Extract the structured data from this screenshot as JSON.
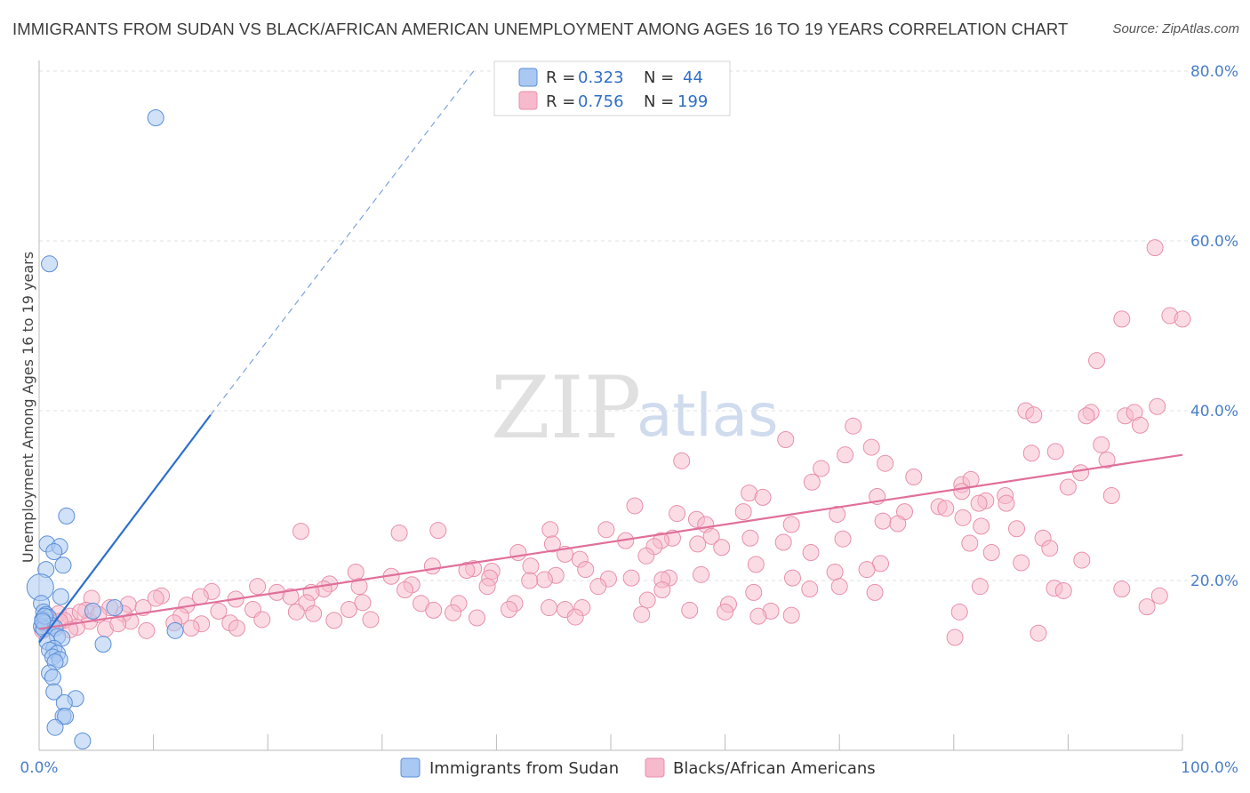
{
  "title": "IMMIGRANTS FROM SUDAN VS BLACK/AFRICAN AMERICAN UNEMPLOYMENT AMONG AGES 16 TO 19 YEARS CORRELATION CHART",
  "source": "Source: ZipAtlas.com",
  "watermark": {
    "zip": "ZIP",
    "atlas": "atlas"
  },
  "legend": {
    "series": [
      {
        "r_label": "R =",
        "r_value": "0.323",
        "n_label": "N =",
        "n_value": "44"
      },
      {
        "r_label": "R =",
        "r_value": "0.756",
        "n_label": "N =",
        "n_value": "199"
      }
    ]
  },
  "bottom_legend": [
    "Immigrants from Sudan",
    "Blacks/African Americans"
  ],
  "colors": {
    "sudan_fill": "#a9c8f2",
    "sudan_stroke": "#5b8fd6",
    "sudan_line": "#2e6fcc",
    "black_fill": "#f7b9cc",
    "black_stroke": "#e890aa",
    "black_line": "#e0709a",
    "tick_text": "#4a7fc8",
    "grid": "#e2e2e2"
  },
  "chart_data": {
    "type": "scatter",
    "xlabel": "",
    "ylabel": "Unemployment Among Ages 16 to 19 years",
    "xlim": [
      0,
      100
    ],
    "ylim": [
      0,
      80
    ],
    "x_tick_labels": [
      "0.0%",
      "100.0%"
    ],
    "y_ticks": [
      20,
      40,
      60,
      80
    ],
    "y_tick_labels": [
      "20.0%",
      "40.0%",
      "60.0%",
      "80.0%"
    ],
    "grid": true,
    "legend_position": "top-center",
    "series": [
      {
        "name": "Immigrants from Sudan",
        "r": 0.323,
        "n": 44,
        "trend": {
          "x0": 0,
          "y0": 12.7,
          "x1": 15,
          "y1": 39.5,
          "dashed_to": [
            38,
            80
          ]
        },
        "points": [
          [
            10.2,
            74.5
          ],
          [
            0.9,
            57.3
          ],
          [
            2.4,
            27.6
          ],
          [
            0.7,
            24.3
          ],
          [
            1.8,
            24.0
          ],
          [
            1.3,
            23.4
          ],
          [
            2.1,
            21.8
          ],
          [
            0.6,
            21.3
          ],
          [
            0.1,
            19.2
          ],
          [
            1.9,
            18.1
          ],
          [
            0.2,
            17.3
          ],
          [
            0.4,
            16.3
          ],
          [
            0.6,
            16.0
          ],
          [
            0.8,
            15.7
          ],
          [
            0.3,
            15.4
          ],
          [
            0.5,
            15.0
          ],
          [
            1.1,
            14.7
          ],
          [
            0.2,
            14.6
          ],
          [
            0.4,
            14.3
          ],
          [
            1.4,
            14.4
          ],
          [
            11.9,
            14.1
          ],
          [
            1.6,
            13.4
          ],
          [
            2.0,
            13.2
          ],
          [
            0.7,
            12.8
          ],
          [
            5.6,
            12.5
          ],
          [
            1.3,
            12.0
          ],
          [
            0.9,
            11.8
          ],
          [
            1.6,
            11.4
          ],
          [
            1.2,
            11.0
          ],
          [
            1.8,
            10.7
          ],
          [
            1.4,
            10.4
          ],
          [
            0.9,
            9.1
          ],
          [
            1.2,
            8.6
          ],
          [
            1.3,
            6.9
          ],
          [
            3.2,
            6.1
          ],
          [
            2.2,
            5.6
          ],
          [
            2.1,
            4.0
          ],
          [
            2.3,
            4.0
          ],
          [
            1.4,
            2.7
          ],
          [
            3.8,
            1.1
          ],
          [
            6.6,
            16.8
          ],
          [
            4.7,
            16.4
          ],
          [
            0.5,
            15.8
          ],
          [
            0.3,
            15.2
          ]
        ]
      },
      {
        "name": "Blacks/African Americans",
        "r": 0.756,
        "n": 199,
        "trend": {
          "x0": 0,
          "y0": 14.3,
          "x1": 100,
          "y1": 34.8
        },
        "points": [
          [
            97.6,
            59.2
          ],
          [
            94.7,
            50.8
          ],
          [
            98.9,
            51.2
          ],
          [
            100,
            50.8
          ],
          [
            92.5,
            45.9
          ],
          [
            97.8,
            40.5
          ],
          [
            95.0,
            39.4
          ],
          [
            95.8,
            39.8
          ],
          [
            86.3,
            40.0
          ],
          [
            87.0,
            39.5
          ],
          [
            92.0,
            39.8
          ],
          [
            91.6,
            39.4
          ],
          [
            96.3,
            38.3
          ],
          [
            71.2,
            38.2
          ],
          [
            65.3,
            36.6
          ],
          [
            92.9,
            36.0
          ],
          [
            72.8,
            35.7
          ],
          [
            86.8,
            35.0
          ],
          [
            88.9,
            35.2
          ],
          [
            93.4,
            34.2
          ],
          [
            70.5,
            34.8
          ],
          [
            56.2,
            34.1
          ],
          [
            74.0,
            33.8
          ],
          [
            68.4,
            33.2
          ],
          [
            91.1,
            32.7
          ],
          [
            76.5,
            32.2
          ],
          [
            80.7,
            31.3
          ],
          [
            81.5,
            31.9
          ],
          [
            67.6,
            31.6
          ],
          [
            90.0,
            31.0
          ],
          [
            62.1,
            30.3
          ],
          [
            80.7,
            30.5
          ],
          [
            84.5,
            30.0
          ],
          [
            73.3,
            29.9
          ],
          [
            93.8,
            30.0
          ],
          [
            63.3,
            29.8
          ],
          [
            82.8,
            29.4
          ],
          [
            84.6,
            29.1
          ],
          [
            82.2,
            29.1
          ],
          [
            52.1,
            28.8
          ],
          [
            78.7,
            28.7
          ],
          [
            79.3,
            28.5
          ],
          [
            61.6,
            28.1
          ],
          [
            75.7,
            28.1
          ],
          [
            55.8,
            27.9
          ],
          [
            69.8,
            27.8
          ],
          [
            80.8,
            27.4
          ],
          [
            57.5,
            27.2
          ],
          [
            73.8,
            27.0
          ],
          [
            58.3,
            26.6
          ],
          [
            75.1,
            26.7
          ],
          [
            82.4,
            26.4
          ],
          [
            65.8,
            26.6
          ],
          [
            85.5,
            26.1
          ],
          [
            49.6,
            26.0
          ],
          [
            22.9,
            25.8
          ],
          [
            31.5,
            25.6
          ],
          [
            34.9,
            25.9
          ],
          [
            44.7,
            26.0
          ],
          [
            58.8,
            25.2
          ],
          [
            62.2,
            25.0
          ],
          [
            51.3,
            24.7
          ],
          [
            55.4,
            25.0
          ],
          [
            87.8,
            25.0
          ],
          [
            70.3,
            24.9
          ],
          [
            81.4,
            24.4
          ],
          [
            65.1,
            24.5
          ],
          [
            57.6,
            24.3
          ],
          [
            44.9,
            24.3
          ],
          [
            54.4,
            24.7
          ],
          [
            53.8,
            24.0
          ],
          [
            59.7,
            23.9
          ],
          [
            88.4,
            23.8
          ],
          [
            83.3,
            23.3
          ],
          [
            67.5,
            23.3
          ],
          [
            41.9,
            23.3
          ],
          [
            46.0,
            23.1
          ],
          [
            53.1,
            22.9
          ],
          [
            47.3,
            22.5
          ],
          [
            91.2,
            22.4
          ],
          [
            73.6,
            22.0
          ],
          [
            85.9,
            22.1
          ],
          [
            62.7,
            21.9
          ],
          [
            43.0,
            21.7
          ],
          [
            72.4,
            21.3
          ],
          [
            69.6,
            21.0
          ],
          [
            57.9,
            20.7
          ],
          [
            38.0,
            21.4
          ],
          [
            34.4,
            21.7
          ],
          [
            37.4,
            21.2
          ],
          [
            47.8,
            21.3
          ],
          [
            39.6,
            21.1
          ],
          [
            27.7,
            21.0
          ],
          [
            30.8,
            20.5
          ],
          [
            45.2,
            20.6
          ],
          [
            55.1,
            20.3
          ],
          [
            51.8,
            20.3
          ],
          [
            65.9,
            20.3
          ],
          [
            54.5,
            20.1
          ],
          [
            39.4,
            20.3
          ],
          [
            49.8,
            20.2
          ],
          [
            44.2,
            20.1
          ],
          [
            42.9,
            20.0
          ],
          [
            25.4,
            19.6
          ],
          [
            32.6,
            19.5
          ],
          [
            28.0,
            19.3
          ],
          [
            39.2,
            19.3
          ],
          [
            48.9,
            19.3
          ],
          [
            54.5,
            18.9
          ],
          [
            32.0,
            18.9
          ],
          [
            19.1,
            19.3
          ],
          [
            24.9,
            19.0
          ],
          [
            20.8,
            18.6
          ],
          [
            23.8,
            18.6
          ],
          [
            22.0,
            18.1
          ],
          [
            88.8,
            19.1
          ],
          [
            67.4,
            19.0
          ],
          [
            70.0,
            19.3
          ],
          [
            82.3,
            19.3
          ],
          [
            94.7,
            19.0
          ],
          [
            62.5,
            18.6
          ],
          [
            73.1,
            18.6
          ],
          [
            89.6,
            18.8
          ],
          [
            98.0,
            18.2
          ],
          [
            15.1,
            18.7
          ],
          [
            10.7,
            18.2
          ],
          [
            4.6,
            17.9
          ],
          [
            14.1,
            18.1
          ],
          [
            10.2,
            17.9
          ],
          [
            17.2,
            17.8
          ],
          [
            23.4,
            17.4
          ],
          [
            28.3,
            17.4
          ],
          [
            33.4,
            17.3
          ],
          [
            36.7,
            17.3
          ],
          [
            41.6,
            17.3
          ],
          [
            44.6,
            16.8
          ],
          [
            47.5,
            16.8
          ],
          [
            34.5,
            16.5
          ],
          [
            27.1,
            16.6
          ],
          [
            7.8,
            17.2
          ],
          [
            12.9,
            17.1
          ],
          [
            9.1,
            16.8
          ],
          [
            18.7,
            16.6
          ],
          [
            15.7,
            16.4
          ],
          [
            6.2,
            16.8
          ],
          [
            4.1,
            16.5
          ],
          [
            22.5,
            16.3
          ],
          [
            24.0,
            16.1
          ],
          [
            12.4,
            15.8
          ],
          [
            7.4,
            16.1
          ],
          [
            1.7,
            16.1
          ],
          [
            2.7,
            15.8
          ],
          [
            19.5,
            15.4
          ],
          [
            25.8,
            15.3
          ],
          [
            36.2,
            16.2
          ],
          [
            41.1,
            16.6
          ],
          [
            46.0,
            16.6
          ],
          [
            53.2,
            17.7
          ],
          [
            60.3,
            17.2
          ],
          [
            64.0,
            16.4
          ],
          [
            60.0,
            16.3
          ],
          [
            62.9,
            15.8
          ],
          [
            65.8,
            15.9
          ],
          [
            80.5,
            16.3
          ],
          [
            96.9,
            16.9
          ],
          [
            80.1,
            13.3
          ],
          [
            87.4,
            13.8
          ],
          [
            2.2,
            15.3
          ],
          [
            4.4,
            15.2
          ],
          [
            8.0,
            15.2
          ],
          [
            11.8,
            15.0
          ],
          [
            14.2,
            14.9
          ],
          [
            16.7,
            15.0
          ],
          [
            29.0,
            15.4
          ],
          [
            38.3,
            15.6
          ],
          [
            46.9,
            15.7
          ],
          [
            52.7,
            16.0
          ],
          [
            56.9,
            16.5
          ],
          [
            0.6,
            14.7
          ],
          [
            3.3,
            14.5
          ],
          [
            5.8,
            14.3
          ],
          [
            0.3,
            14.1
          ],
          [
            9.4,
            14.1
          ],
          [
            1.3,
            14.6
          ],
          [
            6.9,
            14.9
          ],
          [
            2.7,
            14.2
          ],
          [
            0.8,
            15.6
          ],
          [
            3.6,
            16.3
          ],
          [
            5.2,
            16.0
          ],
          [
            1.8,
            15.2
          ],
          [
            0.4,
            15.0
          ],
          [
            13.3,
            14.4
          ],
          [
            17.3,
            14.4
          ]
        ]
      }
    ]
  }
}
